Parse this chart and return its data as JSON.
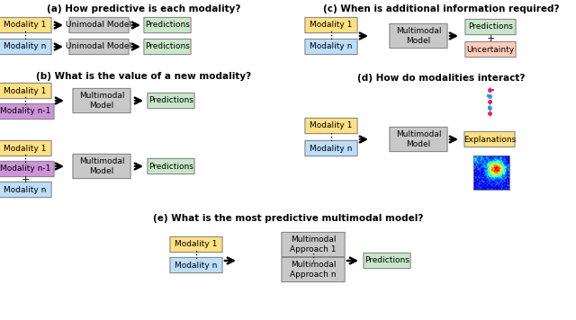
{
  "bg_color": "#ffffff",
  "colors": {
    "yellow": "#FFE082",
    "blue_light": "#BBDEFB",
    "purple": "#CE93D8",
    "gray": "#C8C8C8",
    "gray_dark": "#999999",
    "green_light": "#C8E6C9",
    "orange_light": "#FFCCBC",
    "text": "#000000"
  },
  "sections": {
    "a_title": "(a) How predictive is each modality?",
    "b_title": "(b) What is the value of a new modality?",
    "c_title": "(c) When is additional information required?",
    "d_title": "(d) How do modalities interact?",
    "e_title": "(e) What is the most predictive multimodal model?"
  }
}
